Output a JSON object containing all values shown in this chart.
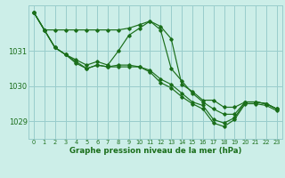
{
  "bg_color": "#cceee8",
  "grid_color": "#99cccc",
  "line_color": "#1a6e1a",
  "xlabel": "Graphe pression niveau de la mer (hPa)",
  "ylim": [
    1028.5,
    1032.3
  ],
  "xlim": [
    -0.5,
    23.5
  ],
  "yticks": [
    1029,
    1030,
    1031
  ],
  "xticks": [
    0,
    1,
    2,
    3,
    4,
    5,
    6,
    7,
    8,
    9,
    10,
    11,
    12,
    13,
    14,
    15,
    16,
    17,
    18,
    19,
    20,
    21,
    22,
    23
  ],
  "series": [
    [
      1032.1,
      1031.6,
      1031.6,
      1031.6,
      1031.6,
      1031.6,
      1031.6,
      1031.6,
      1031.6,
      1031.65,
      1031.75,
      1031.85,
      1031.7,
      1031.35,
      1030.05,
      1029.85,
      1029.6,
      1029.6,
      1029.4,
      1029.4,
      1029.55,
      1029.55,
      1029.5,
      1029.35
    ],
    [
      1032.1,
      1031.6,
      1031.1,
      1030.9,
      1030.75,
      1030.6,
      1030.7,
      1030.6,
      1031.0,
      1031.45,
      1031.65,
      1031.85,
      1031.6,
      1030.5,
      1030.15,
      1029.8,
      1029.55,
      1029.35,
      1029.2,
      1029.2,
      1029.55,
      1029.55,
      1029.5,
      1029.35
    ],
    [
      1032.1,
      1031.6,
      1031.1,
      1030.9,
      1030.65,
      1030.5,
      1030.6,
      1030.55,
      1030.6,
      1030.6,
      1030.55,
      1030.45,
      1030.2,
      1030.05,
      1029.8,
      1029.55,
      1029.45,
      1029.05,
      1028.95,
      1029.1,
      1029.55,
      1029.55,
      1029.5,
      1029.35
    ],
    [
      1032.1,
      1031.6,
      1031.1,
      1030.9,
      1030.7,
      1030.5,
      1030.6,
      1030.55,
      1030.55,
      1030.55,
      1030.55,
      1030.4,
      1030.1,
      1029.95,
      1029.7,
      1029.5,
      1029.35,
      1028.95,
      1028.85,
      1029.05,
      1029.5,
      1029.5,
      1029.45,
      1029.3
    ]
  ]
}
